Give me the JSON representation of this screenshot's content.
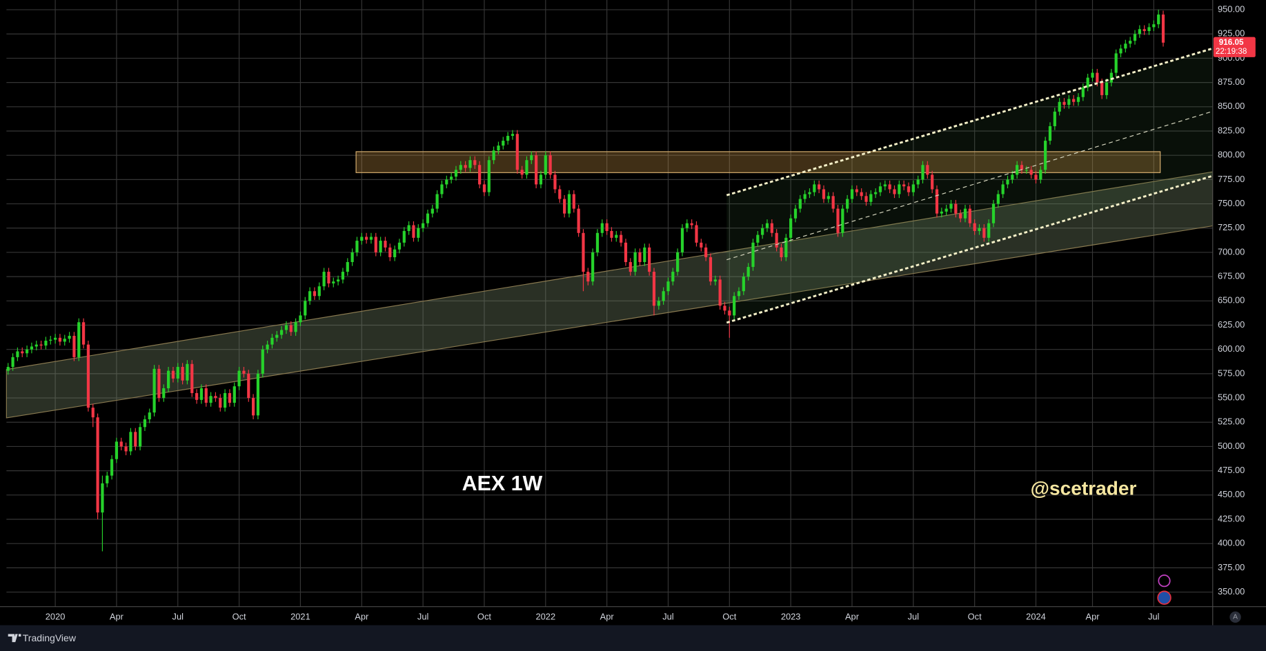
{
  "chart_data": {
    "type": "candlestick",
    "title": "AEX 1W",
    "annotation": "@scetrader",
    "last_price_countdown": "22:19:38",
    "up_color": "#26d22b",
    "down_color": "#f23645",
    "grid": true,
    "xlim": [
      -0.35,
      255.5
    ],
    "xticks": [
      {
        "value": 10,
        "label": "2020"
      },
      {
        "value": 23,
        "label": "Apr"
      },
      {
        "value": 36,
        "label": "Jul"
      },
      {
        "value": 49,
        "label": "Oct"
      },
      {
        "value": 62,
        "label": "2021"
      },
      {
        "value": 75,
        "label": "Apr"
      },
      {
        "value": 88,
        "label": "Jul"
      },
      {
        "value": 101,
        "label": "Oct"
      },
      {
        "value": 114,
        "label": "2022"
      },
      {
        "value": 127,
        "label": "Apr"
      },
      {
        "value": 140,
        "label": "Jul"
      },
      {
        "value": 153,
        "label": "Oct"
      },
      {
        "value": 166,
        "label": "2023"
      },
      {
        "value": 179,
        "label": "Apr"
      },
      {
        "value": 192,
        "label": "Jul"
      },
      {
        "value": 205,
        "label": "Oct"
      },
      {
        "value": 218,
        "label": "2024"
      },
      {
        "value": 230,
        "label": "Apr"
      },
      {
        "value": 243,
        "label": "Jul"
      }
    ],
    "ylim": [
      335,
      960
    ],
    "yticks": [
      {
        "value": 350,
        "label": "350.00"
      },
      {
        "value": 375,
        "label": "375.00"
      },
      {
        "value": 400,
        "label": "400.00"
      },
      {
        "value": 425,
        "label": "425.00"
      },
      {
        "value": 450,
        "label": "450.00"
      },
      {
        "value": 475,
        "label": "475.00"
      },
      {
        "value": 500,
        "label": "500.00"
      },
      {
        "value": 525,
        "label": "525.00"
      },
      {
        "value": 550,
        "label": "550.00"
      },
      {
        "value": 575,
        "label": "575.00"
      },
      {
        "value": 600,
        "label": "600.00"
      },
      {
        "value": 625,
        "label": "625.00"
      },
      {
        "value": 650,
        "label": "650.00"
      },
      {
        "value": 675,
        "label": "675.00"
      },
      {
        "value": 700,
        "label": "700.00"
      },
      {
        "value": 725,
        "label": "725.00"
      },
      {
        "value": 750,
        "label": "750.00"
      },
      {
        "value": 775,
        "label": "775.00"
      },
      {
        "value": 800,
        "label": "800.00"
      },
      {
        "value": 825,
        "label": "825.00"
      },
      {
        "value": 850,
        "label": "850.00"
      },
      {
        "value": 875,
        "label": "875.00"
      },
      {
        "value": 900,
        "label": "900.00"
      },
      {
        "value": 925,
        "label": "925.00"
      },
      {
        "value": 950,
        "label": "950.00"
      }
    ],
    "open": [
      578,
      582,
      592,
      598,
      596,
      600,
      603,
      605,
      604,
      609,
      610,
      612,
      608,
      611,
      614,
      592,
      628,
      605,
      540,
      530,
      432,
      462,
      470,
      487,
      505,
      500,
      495,
      515,
      500,
      520,
      528,
      535,
      580,
      550,
      560,
      578,
      570,
      582,
      568,
      585,
      555,
      548,
      560,
      545,
      552,
      550,
      540,
      555,
      545,
      562,
      578,
      575,
      550,
      532,
      575,
      600,
      605,
      612,
      615,
      620,
      625,
      618,
      628,
      635,
      650,
      660,
      655,
      665,
      680,
      668,
      670,
      672,
      680,
      690,
      700,
      712,
      716,
      713,
      716,
      700,
      712,
      705,
      695,
      703,
      710,
      722,
      728,
      715,
      725,
      730,
      740,
      745,
      760,
      770,
      775,
      778,
      785,
      790,
      787,
      795,
      790,
      770,
      762,
      795,
      805,
      810,
      815,
      820,
      822,
      785,
      780,
      795,
      800,
      770,
      780,
      800,
      780,
      765,
      755,
      740,
      760,
      745,
      720,
      680,
      670,
      700,
      720,
      730,
      722,
      715,
      718,
      710,
      690,
      680,
      700,
      690,
      705,
      680,
      645,
      650,
      660,
      670,
      680,
      700,
      725,
      730,
      728,
      710,
      705,
      695,
      670,
      672,
      645,
      640,
      635,
      655,
      660,
      675,
      685,
      710,
      718,
      725,
      730,
      720,
      705,
      695,
      715,
      735,
      745,
      755,
      760,
      762,
      770,
      765,
      755,
      758,
      745,
      720,
      745,
      755,
      765,
      762,
      758,
      752,
      760,
      762,
      768,
      770,
      765,
      760,
      770,
      768,
      762,
      770,
      775,
      790,
      780,
      765,
      740,
      742,
      745,
      750,
      740,
      735,
      745,
      730,
      722,
      725,
      715,
      730,
      750,
      760,
      770,
      775,
      780,
      790,
      785,
      785,
      780,
      775,
      785,
      815,
      830,
      845,
      855,
      852,
      858,
      855,
      860,
      870,
      880,
      885,
      875,
      862,
      875,
      885,
      905,
      910,
      915,
      918,
      925,
      930,
      928,
      932,
      935,
      945
    ],
    "high": [
      586,
      596,
      602,
      602,
      604,
      607,
      609,
      609,
      613,
      614,
      616,
      616,
      615,
      618,
      618,
      632,
      632,
      609,
      544,
      534,
      470,
      474,
      491,
      509,
      509,
      504,
      519,
      519,
      524,
      532,
      539,
      584,
      584,
      564,
      582,
      582,
      586,
      586,
      589,
      589,
      559,
      564,
      564,
      556,
      556,
      554,
      559,
      559,
      566,
      582,
      582,
      579,
      554,
      579,
      604,
      609,
      616,
      619,
      624,
      629,
      629,
      632,
      639,
      654,
      664,
      664,
      669,
      684,
      684,
      674,
      676,
      684,
      694,
      704,
      716,
      720,
      720,
      720,
      720,
      716,
      716,
      709,
      707,
      714,
      726,
      732,
      732,
      729,
      734,
      744,
      749,
      764,
      774,
      779,
      782,
      789,
      794,
      794,
      799,
      799,
      794,
      774,
      799,
      809,
      814,
      819,
      824,
      826,
      826,
      789,
      799,
      804,
      804,
      784,
      804,
      804,
      784,
      769,
      759,
      764,
      764,
      749,
      724,
      684,
      704,
      724,
      734,
      734,
      726,
      722,
      722,
      714,
      694,
      704,
      704,
      709,
      709,
      684,
      654,
      664,
      674,
      684,
      704,
      729,
      734,
      734,
      732,
      714,
      709,
      699,
      676,
      676,
      649,
      644,
      659,
      664,
      679,
      689,
      714,
      722,
      729,
      734,
      734,
      724,
      709,
      719,
      739,
      749,
      759,
      764,
      766,
      774,
      774,
      769,
      762,
      762,
      749,
      749,
      759,
      769,
      769,
      766,
      762,
      764,
      766,
      772,
      774,
      774,
      769,
      774,
      774,
      772,
      774,
      779,
      794,
      794,
      784,
      769,
      746,
      749,
      754,
      754,
      744,
      749,
      749,
      734,
      729,
      729,
      734,
      754,
      764,
      774,
      779,
      784,
      794,
      794,
      789,
      789,
      784,
      789,
      819,
      834,
      849,
      859,
      859,
      862,
      862,
      864,
      874,
      884,
      889,
      889,
      879,
      879,
      889,
      909,
      914,
      919,
      922,
      929,
      934,
      934,
      936,
      939,
      950,
      949
    ],
    "low": [
      574,
      578,
      588,
      592,
      592,
      596,
      599,
      600,
      600,
      605,
      606,
      604,
      604,
      607,
      588,
      588,
      601,
      536,
      520,
      425,
      392,
      458,
      466,
      483,
      496,
      491,
      491,
      496,
      496,
      516,
      524,
      531,
      546,
      546,
      556,
      566,
      566,
      564,
      564,
      551,
      544,
      544,
      541,
      541,
      546,
      536,
      536,
      541,
      541,
      558,
      571,
      546,
      528,
      528,
      571,
      596,
      601,
      608,
      611,
      616,
      614,
      614,
      624,
      631,
      646,
      651,
      651,
      661,
      664,
      664,
      666,
      668,
      676,
      686,
      696,
      708,
      709,
      709,
      696,
      696,
      701,
      691,
      691,
      699,
      706,
      718,
      711,
      711,
      721,
      726,
      736,
      741,
      756,
      766,
      771,
      774,
      781,
      783,
      783,
      786,
      766,
      758,
      758,
      791,
      801,
      806,
      811,
      816,
      781,
      776,
      776,
      791,
      766,
      766,
      776,
      776,
      761,
      751,
      736,
      736,
      741,
      716,
      660,
      666,
      666,
      696,
      716,
      718,
      711,
      711,
      706,
      686,
      676,
      676,
      686,
      686,
      676,
      635,
      641,
      646,
      656,
      666,
      676,
      696,
      721,
      724,
      706,
      701,
      691,
      666,
      666,
      641,
      636,
      612,
      631,
      651,
      656,
      671,
      681,
      706,
      714,
      721,
      716,
      701,
      691,
      691,
      711,
      731,
      741,
      751,
      756,
      758,
      761,
      751,
      751,
      741,
      716,
      716,
      741,
      751,
      758,
      754,
      748,
      748,
      756,
      758,
      764,
      761,
      756,
      756,
      764,
      758,
      758,
      766,
      771,
      776,
      761,
      736,
      736,
      738,
      741,
      736,
      731,
      731,
      726,
      718,
      718,
      711,
      711,
      726,
      746,
      756,
      766,
      771,
      776,
      781,
      781,
      776,
      771,
      771,
      781,
      811,
      826,
      841,
      848,
      848,
      851,
      851,
      856,
      866,
      876,
      871,
      858,
      858,
      871,
      881,
      901,
      906,
      911,
      914,
      921,
      924,
      924,
      928,
      931,
      912
    ],
    "close": [
      582,
      592,
      598,
      596,
      600,
      603,
      605,
      604,
      609,
      610,
      612,
      608,
      611,
      614,
      592,
      628,
      605,
      540,
      530,
      432,
      462,
      470,
      487,
      505,
      500,
      495,
      515,
      500,
      520,
      528,
      535,
      580,
      550,
      560,
      578,
      570,
      582,
      568,
      585,
      555,
      548,
      560,
      545,
      552,
      550,
      540,
      555,
      545,
      562,
      578,
      575,
      550,
      532,
      575,
      600,
      605,
      612,
      615,
      620,
      625,
      618,
      628,
      635,
      650,
      660,
      655,
      665,
      680,
      668,
      670,
      672,
      680,
      690,
      700,
      712,
      716,
      713,
      716,
      700,
      712,
      705,
      695,
      703,
      710,
      722,
      728,
      715,
      725,
      730,
      740,
      745,
      760,
      770,
      775,
      778,
      785,
      790,
      787,
      795,
      790,
      770,
      762,
      795,
      805,
      810,
      815,
      820,
      822,
      785,
      780,
      795,
      800,
      770,
      780,
      800,
      780,
      765,
      755,
      740,
      760,
      745,
      720,
      680,
      670,
      700,
      720,
      730,
      722,
      715,
      718,
      710,
      690,
      680,
      700,
      690,
      705,
      680,
      645,
      650,
      660,
      670,
      680,
      700,
      725,
      730,
      728,
      710,
      705,
      695,
      670,
      672,
      645,
      640,
      635,
      655,
      660,
      675,
      685,
      710,
      718,
      725,
      730,
      720,
      705,
      695,
      715,
      735,
      745,
      755,
      760,
      762,
      770,
      765,
      755,
      758,
      745,
      720,
      745,
      755,
      765,
      762,
      758,
      752,
      760,
      762,
      768,
      770,
      765,
      760,
      770,
      768,
      762,
      770,
      775,
      790,
      780,
      765,
      740,
      742,
      745,
      750,
      740,
      735,
      745,
      730,
      722,
      725,
      715,
      730,
      750,
      760,
      770,
      775,
      780,
      790,
      785,
      785,
      780,
      775,
      785,
      815,
      830,
      845,
      855,
      852,
      858,
      855,
      860,
      870,
      880,
      885,
      875,
      862,
      875,
      885,
      905,
      910,
      915,
      918,
      925,
      930,
      928,
      932,
      935,
      945,
      916.05
    ]
  },
  "footer": {
    "brand": "TradingView"
  }
}
